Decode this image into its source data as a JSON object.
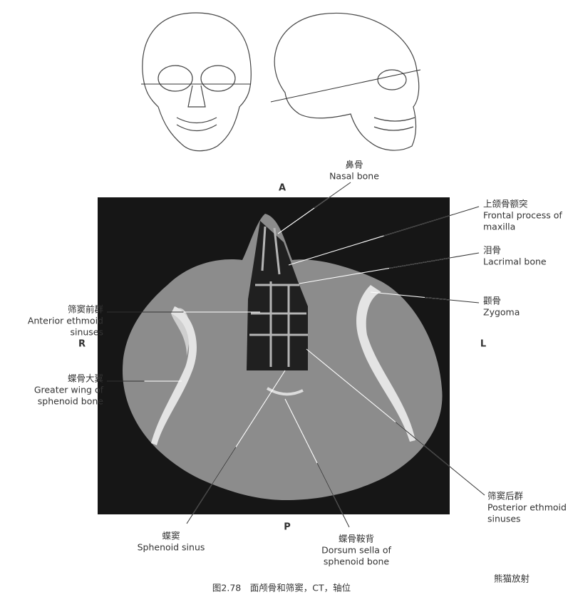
{
  "view_label": "A",
  "labels": [
    {
      "lines": [
        "鼻骨",
        "Nasal bone"
      ]
    },
    {
      "lines": [
        "上颌骨额突",
        "Frontal process of",
        "maxilla"
      ]
    },
    {
      "lines": [
        "泪骨",
        "Lacrimal bone"
      ]
    },
    {
      "lines": [
        "颧骨",
        "Zygoma"
      ]
    },
    {
      "lines": [
        "筛窦前群",
        "Anterior ethmoid",
        "sinuses"
      ]
    },
    {
      "lines": [
        "蝶骨大翼",
        "Greater wing of",
        "sphenoid bone"
      ]
    },
    {
      "lines": [
        "筛窦后群",
        "Posterior ethmoid",
        "sinuses"
      ]
    },
    {
      "lines": [
        "蝶窦",
        "Sphenoid sinus"
      ]
    },
    {
      "lines": [
        "蝶骨鞍背",
        "Dorsum sella of",
        "sphenoid bone"
      ]
    }
  ],
  "orientation": {
    "right": "R",
    "left": "L",
    "posterior": "P"
  },
  "caption": "图2.78　面颅骨和筛窦，CT，轴位",
  "watermark": "熊猫放射"
}
